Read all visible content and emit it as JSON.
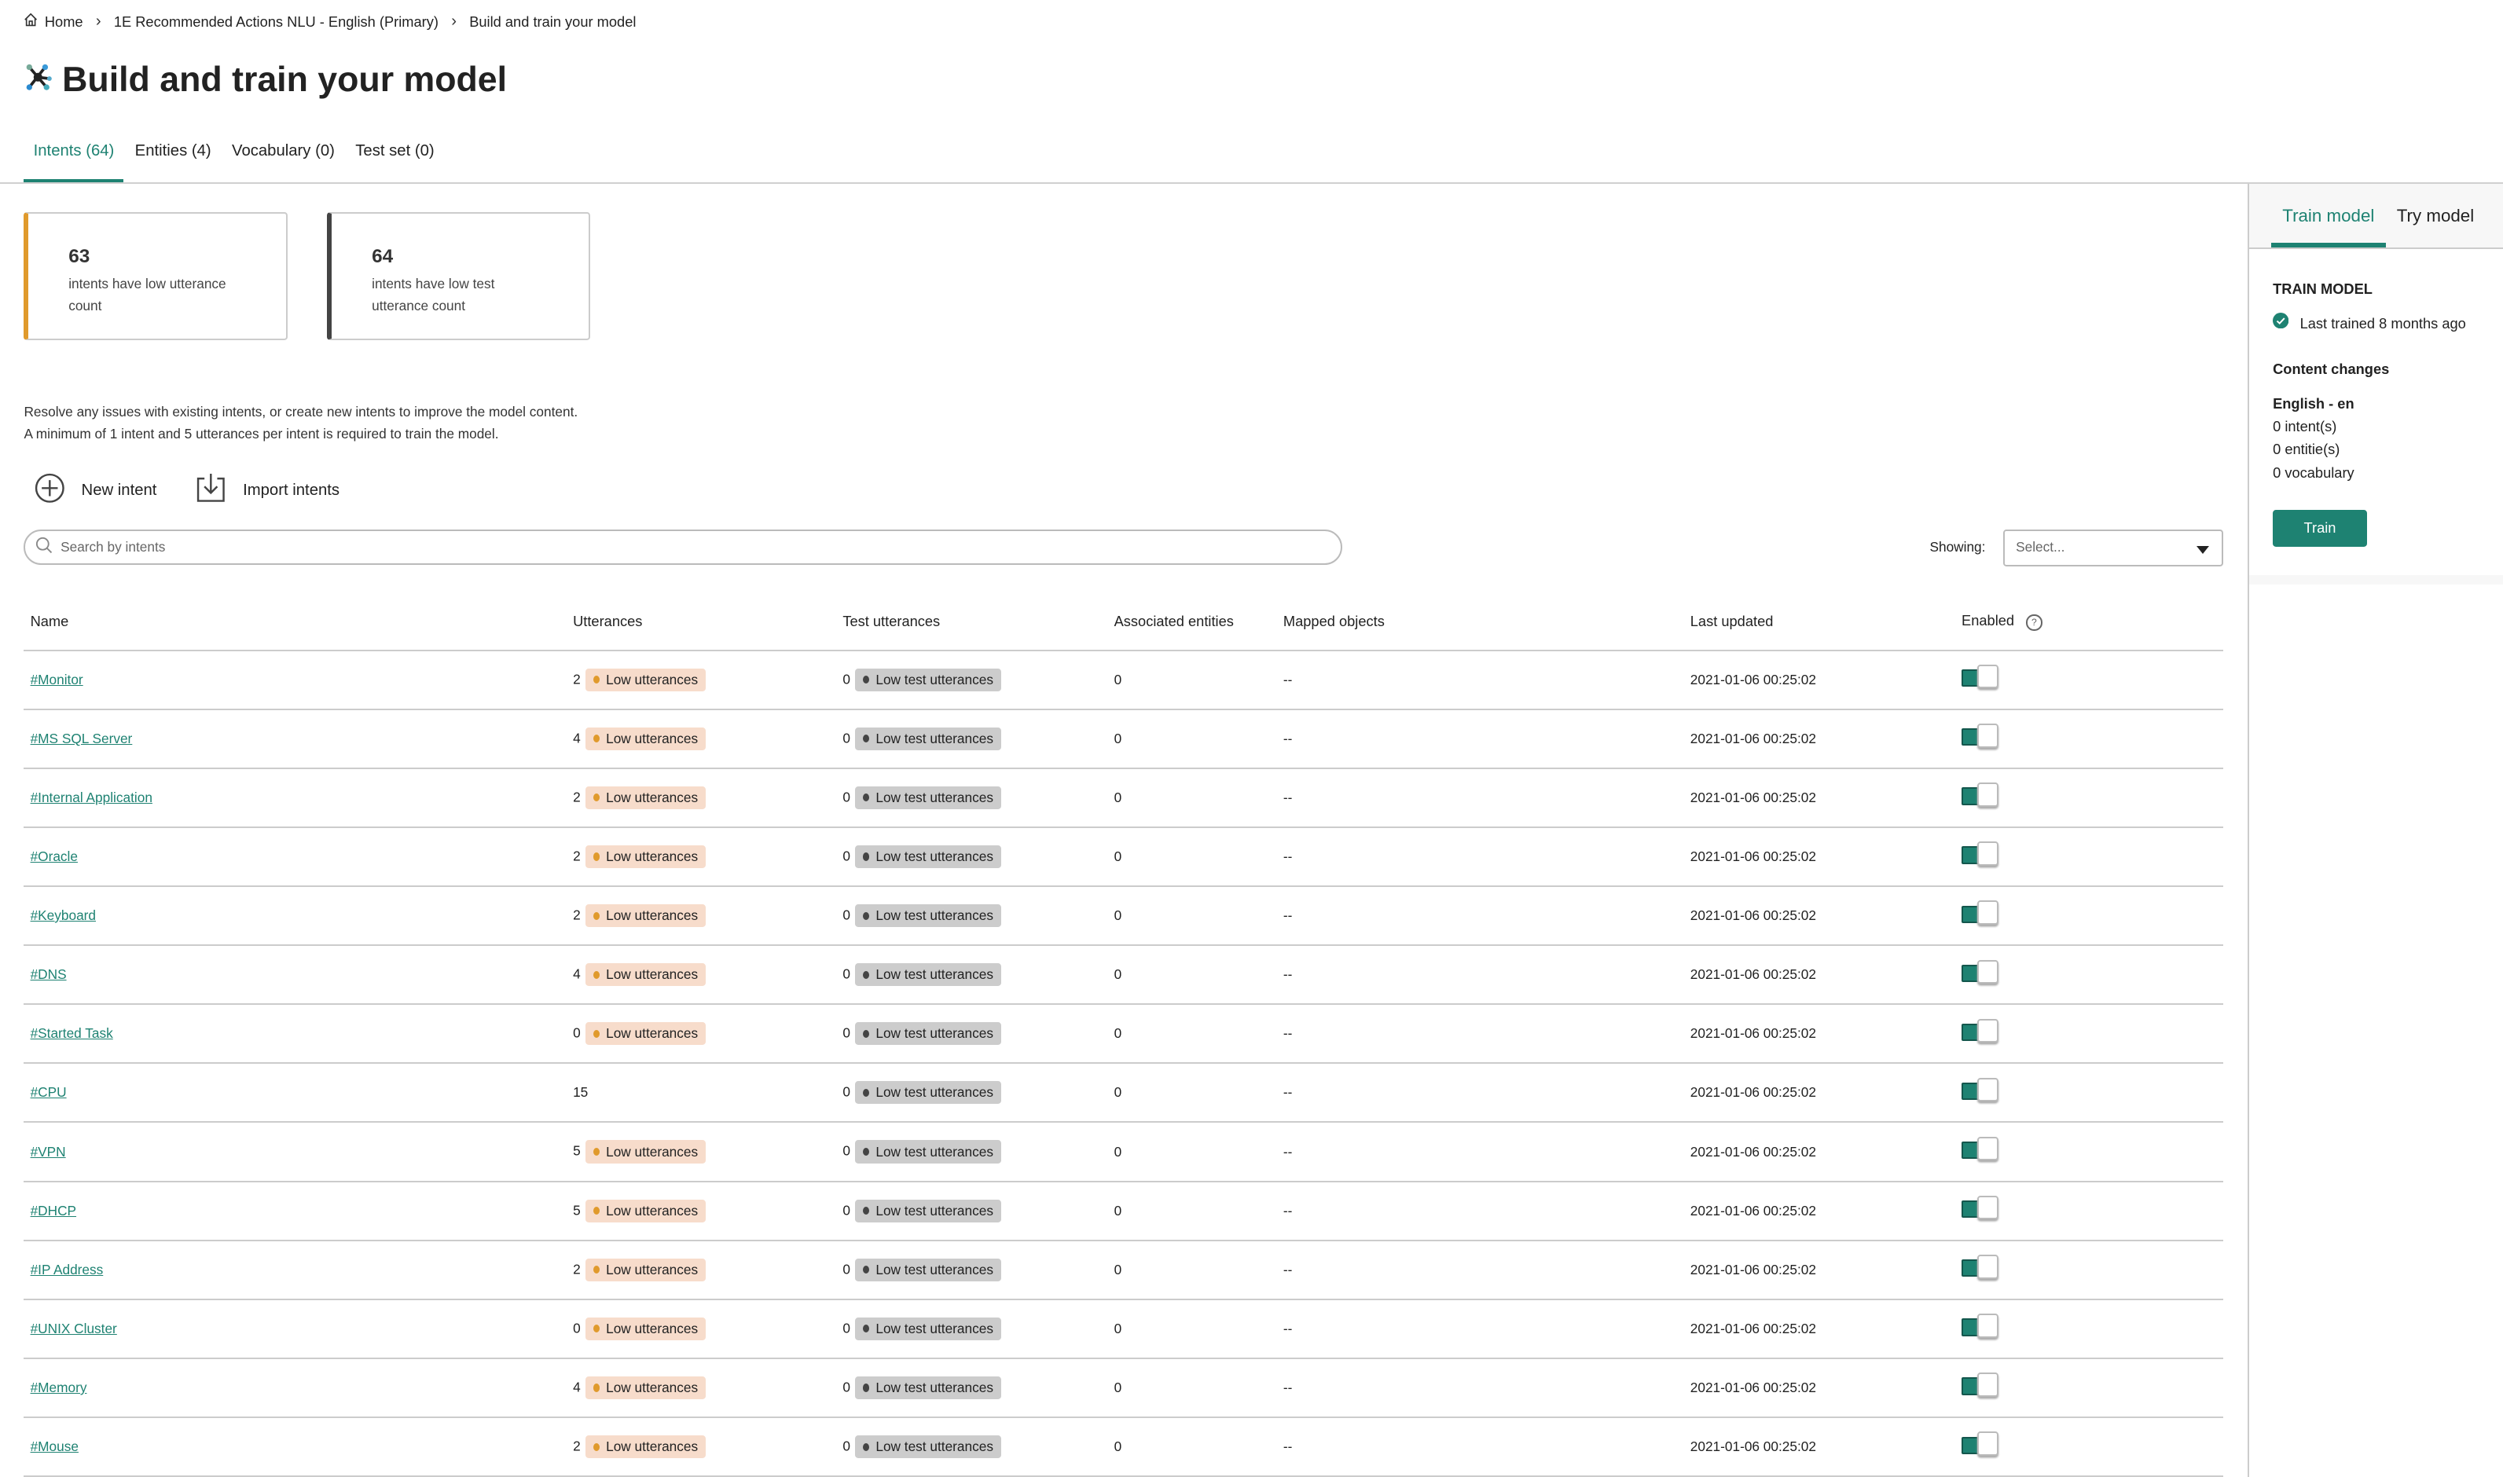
{
  "breadcrumb": {
    "home": "Home",
    "project": "1E Recommended Actions NLU - English (Primary)",
    "current": "Build and train your model"
  },
  "page_title": "Build and train your model",
  "tabs": [
    {
      "label": "Intents (64)",
      "active": true
    },
    {
      "label": "Entities (4)"
    },
    {
      "label": "Vocabulary (0)"
    },
    {
      "label": "Test set (0)"
    }
  ],
  "cards": [
    {
      "count": "63",
      "label": "intents have low utterance count",
      "accent": "#e09a2c"
    },
    {
      "count": "64",
      "label": "intents have low test utterance count",
      "accent": "#444444"
    }
  ],
  "info": {
    "line1": "Resolve any issues with existing intents, or create new intents to improve the model content.",
    "line2": "A minimum of 1 intent and 5 utterances per intent is required to train the model."
  },
  "actions": {
    "new_intent": "New intent",
    "import_intents": "Import intents"
  },
  "search": {
    "placeholder": "Search by intents"
  },
  "filter": {
    "label": "Showing:",
    "placeholder": "Select..."
  },
  "table": {
    "columns": [
      "Name",
      "Utterances",
      "Test utterances",
      "Associated entities",
      "Mapped objects",
      "Last updated",
      "Enabled"
    ],
    "low_label": "Low utterances",
    "low_test_label": "Low test utterances",
    "rows": [
      {
        "name": "#Monitor",
        "utt": "2",
        "low": true,
        "test": "0",
        "ent": "0",
        "mapped": "--",
        "updated": "2021-01-06 00:25:02",
        "enabled": true
      },
      {
        "name": "#MS SQL Server",
        "utt": "4",
        "low": true,
        "test": "0",
        "ent": "0",
        "mapped": "--",
        "updated": "2021-01-06 00:25:02",
        "enabled": true
      },
      {
        "name": "#Internal Application",
        "utt": "2",
        "low": true,
        "test": "0",
        "ent": "0",
        "mapped": "--",
        "updated": "2021-01-06 00:25:02",
        "enabled": true
      },
      {
        "name": "#Oracle",
        "utt": "2",
        "low": true,
        "test": "0",
        "ent": "0",
        "mapped": "--",
        "updated": "2021-01-06 00:25:02",
        "enabled": true
      },
      {
        "name": "#Keyboard",
        "utt": "2",
        "low": true,
        "test": "0",
        "ent": "0",
        "mapped": "--",
        "updated": "2021-01-06 00:25:02",
        "enabled": true
      },
      {
        "name": "#DNS",
        "utt": "4",
        "low": true,
        "test": "0",
        "ent": "0",
        "mapped": "--",
        "updated": "2021-01-06 00:25:02",
        "enabled": true
      },
      {
        "name": "#Started Task",
        "utt": "0",
        "low": true,
        "test": "0",
        "ent": "0",
        "mapped": "--",
        "updated": "2021-01-06 00:25:02",
        "enabled": true
      },
      {
        "name": "#CPU",
        "utt": "15",
        "low": false,
        "test": "0",
        "ent": "0",
        "mapped": "--",
        "updated": "2021-01-06 00:25:02",
        "enabled": true
      },
      {
        "name": "#VPN",
        "utt": "5",
        "low": true,
        "test": "0",
        "ent": "0",
        "mapped": "--",
        "updated": "2021-01-06 00:25:02",
        "enabled": true
      },
      {
        "name": "#DHCP",
        "utt": "5",
        "low": true,
        "test": "0",
        "ent": "0",
        "mapped": "--",
        "updated": "2021-01-06 00:25:02",
        "enabled": true
      },
      {
        "name": "#IP Address",
        "utt": "2",
        "low": true,
        "test": "0",
        "ent": "0",
        "mapped": "--",
        "updated": "2021-01-06 00:25:02",
        "enabled": true
      },
      {
        "name": "#UNIX Cluster",
        "utt": "0",
        "low": true,
        "test": "0",
        "ent": "0",
        "mapped": "--",
        "updated": "2021-01-06 00:25:02",
        "enabled": true
      },
      {
        "name": "#Memory",
        "utt": "4",
        "low": true,
        "test": "0",
        "ent": "0",
        "mapped": "--",
        "updated": "2021-01-06 00:25:02",
        "enabled": true
      },
      {
        "name": "#Mouse",
        "utt": "2",
        "low": true,
        "test": "0",
        "ent": "0",
        "mapped": "--",
        "updated": "2021-01-06 00:25:02",
        "enabled": true
      }
    ]
  },
  "panel": {
    "tabs": [
      {
        "label": "Train model",
        "active": true
      },
      {
        "label": "Try model"
      }
    ],
    "heading": "TRAIN MODEL",
    "status": "Last trained 8 months ago",
    "changes_title": "Content changes",
    "language": "English - en",
    "intents": "0 intent(s)",
    "entities": "0 entitie(s)",
    "vocabulary": "0 vocabulary",
    "train_button": "Train"
  },
  "colors": {
    "accent": "#1e8272",
    "low_badge": "#f7dccb",
    "low_dot": "#e09a2c",
    "test_badge": "#cccccc"
  }
}
